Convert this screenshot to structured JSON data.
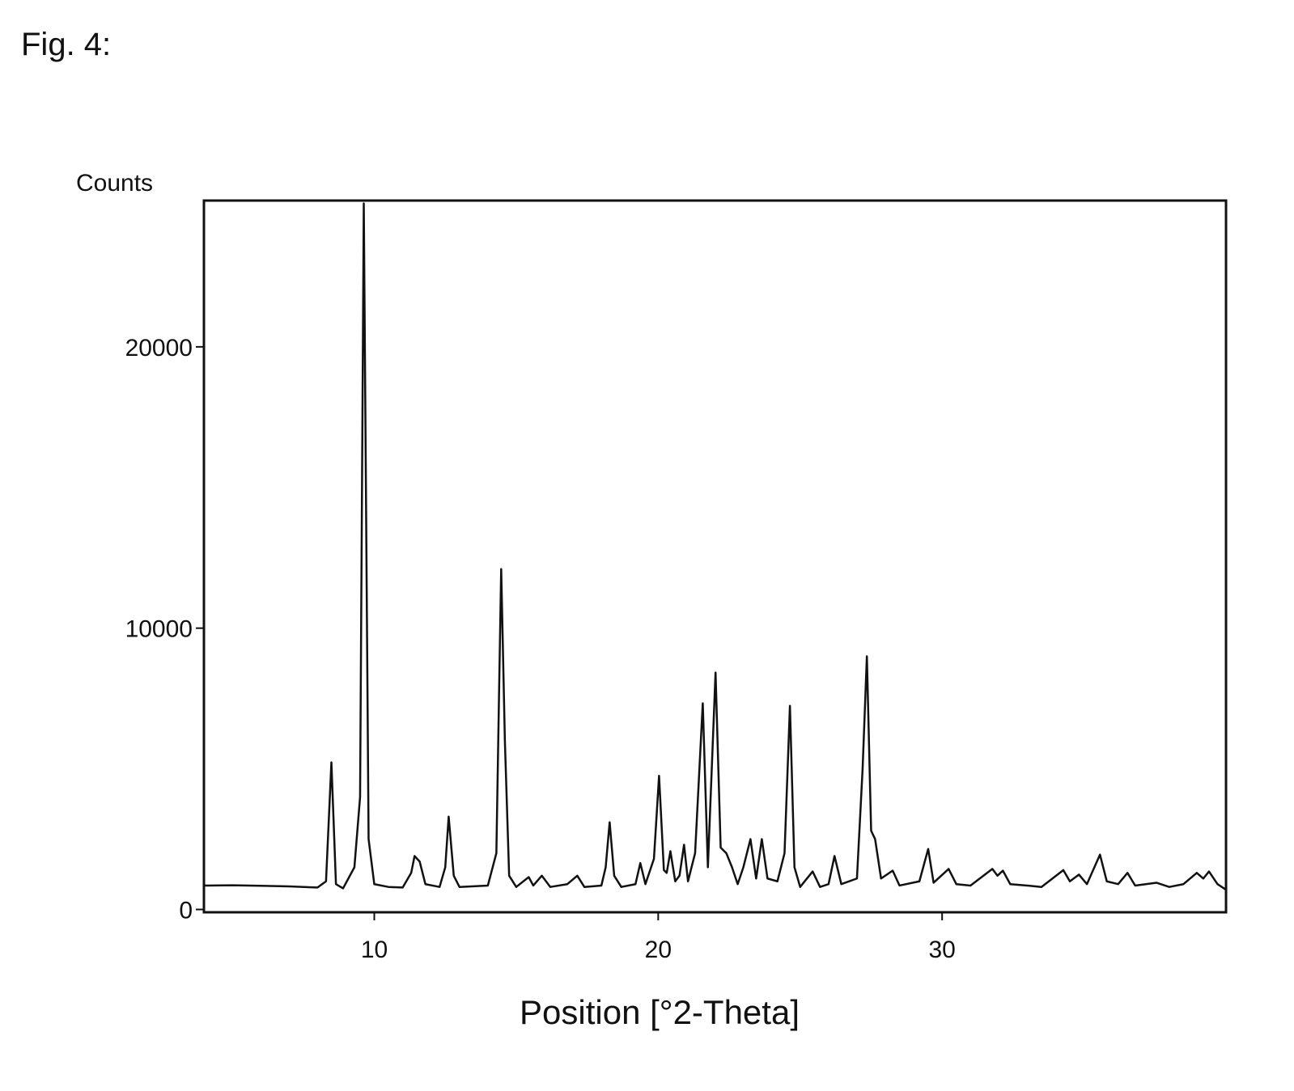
{
  "figure_label": "Fig. 4:",
  "chart_data": {
    "type": "line",
    "y_label": "Counts",
    "x_label": "Position [°2-Theta]",
    "color": "#111111",
    "x": [
      4.0,
      5.0,
      6.0,
      7.0,
      8.0,
      8.3,
      8.49,
      8.65,
      8.9,
      9.3,
      9.5,
      9.63,
      9.8,
      10.0,
      10.5,
      11.0,
      11.3,
      11.42,
      11.6,
      11.8,
      12.3,
      12.5,
      12.62,
      12.8,
      13.0,
      14.0,
      14.3,
      14.4,
      14.47,
      14.6,
      14.75,
      15.0,
      15.44,
      15.6,
      15.9,
      16.2,
      16.8,
      17.15,
      17.4,
      18.0,
      18.15,
      18.29,
      18.45,
      18.7,
      19.2,
      19.37,
      19.55,
      19.85,
      20.03,
      20.2,
      20.3,
      20.43,
      20.6,
      20.75,
      20.91,
      21.05,
      21.3,
      21.57,
      21.75,
      22.02,
      22.2,
      22.4,
      22.6,
      22.8,
      23.0,
      23.25,
      23.45,
      23.65,
      23.85,
      24.2,
      24.45,
      24.64,
      24.8,
      25.0,
      25.44,
      25.7,
      26.0,
      26.21,
      26.45,
      27.0,
      27.2,
      27.35,
      27.5,
      27.64,
      27.85,
      28.26,
      28.5,
      29.2,
      29.51,
      29.7,
      30.23,
      30.5,
      31.0,
      31.77,
      31.95,
      32.14,
      32.4,
      33.0,
      33.5,
      34.27,
      34.5,
      34.82,
      35.1,
      35.56,
      35.8,
      36.2,
      36.53,
      36.8,
      37.55,
      38.0,
      38.5,
      38.97,
      39.2,
      39.4,
      39.7,
      40.0
    ],
    "values": [
      850,
      860,
      840,
      820,
      780,
      1000,
      5230,
      900,
      750,
      1500,
      4000,
      25100,
      2500,
      900,
      800,
      780,
      1300,
      1900,
      1700,
      900,
      800,
      1500,
      3300,
      1200,
      800,
      850,
      2000,
      8000,
      12100,
      6000,
      1200,
      800,
      1150,
      850,
      1200,
      800,
      900,
      1200,
      800,
      850,
      1500,
      3100,
      1200,
      800,
      900,
      1650,
      900,
      1800,
      4750,
      1400,
      1300,
      2070,
      1000,
      1200,
      2300,
      1000,
      2000,
      7330,
      1500,
      8420,
      2200,
      2000,
      1500,
      900,
      1500,
      2500,
      1100,
      2500,
      1100,
      1000,
      2000,
      7240,
      1500,
      800,
      1350,
      800,
      900,
      1900,
      900,
      1100,
      5000,
      9000,
      2800,
      2500,
      1100,
      1380,
      850,
      1000,
      2150,
      950,
      1440,
      900,
      850,
      1440,
      1200,
      1380,
      900,
      850,
      800,
      1400,
      1000,
      1240,
      900,
      1950,
      1000,
      900,
      1300,
      850,
      950,
      800,
      900,
      1300,
      1100,
      1350,
      900,
      700
    ],
    "xlim": [
      4,
      40
    ],
    "ylim": [
      -100,
      25200
    ],
    "xticks": [
      10,
      20,
      30
    ],
    "yticks": [
      0,
      10000,
      20000
    ]
  }
}
